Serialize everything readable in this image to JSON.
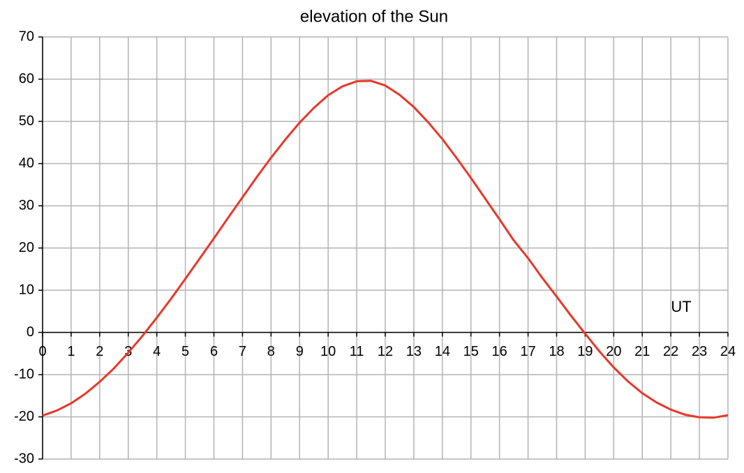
{
  "chart_data": {
    "type": "line",
    "title": "elevation of the Sun",
    "x_label": "UT",
    "x": [
      0,
      0.5,
      1,
      1.5,
      2,
      2.5,
      3,
      3.5,
      4,
      4.5,
      5,
      5.5,
      6,
      6.5,
      7,
      7.5,
      8,
      8.5,
      9,
      9.5,
      10,
      10.5,
      11,
      11.5,
      12,
      12.5,
      13,
      13.5,
      14,
      14.5,
      15,
      15.5,
      16,
      16.5,
      17,
      17.5,
      18,
      18.5,
      19,
      19.5,
      20,
      20.5,
      21,
      21.5,
      22,
      22.5,
      23,
      23.5,
      24
    ],
    "values": [
      -19.7,
      -18.5,
      -16.8,
      -14.5,
      -11.7,
      -8.5,
      -4.8,
      -0.8,
      3.5,
      8,
      12.7,
      17.5,
      22.3,
      27.2,
      32,
      36.8,
      41.4,
      45.7,
      49.7,
      53.2,
      56.2,
      58.3,
      59.5,
      59.6,
      58.5,
      56.3,
      53.4,
      49.8,
      45.8,
      41.3,
      36.6,
      31.7,
      26.8,
      21.8,
      17.6,
      12.9,
      8.5,
      4.0,
      -0.3,
      -4.5,
      -8.3,
      -11.6,
      -14.4,
      -16.6,
      -18.3,
      -19.5,
      -20.1,
      -20.2,
      -19.6
    ],
    "color": "#e8372b",
    "xlim": [
      0,
      24
    ],
    "ylim": [
      -30,
      70
    ],
    "xticks": [
      0,
      1,
      2,
      3,
      4,
      5,
      6,
      7,
      8,
      9,
      10,
      11,
      12,
      13,
      14,
      15,
      16,
      17,
      18,
      19,
      20,
      21,
      22,
      23,
      24
    ],
    "yticks": [
      -30,
      -20,
      -10,
      0,
      10,
      20,
      30,
      40,
      50,
      60,
      70
    ],
    "grid": true
  }
}
